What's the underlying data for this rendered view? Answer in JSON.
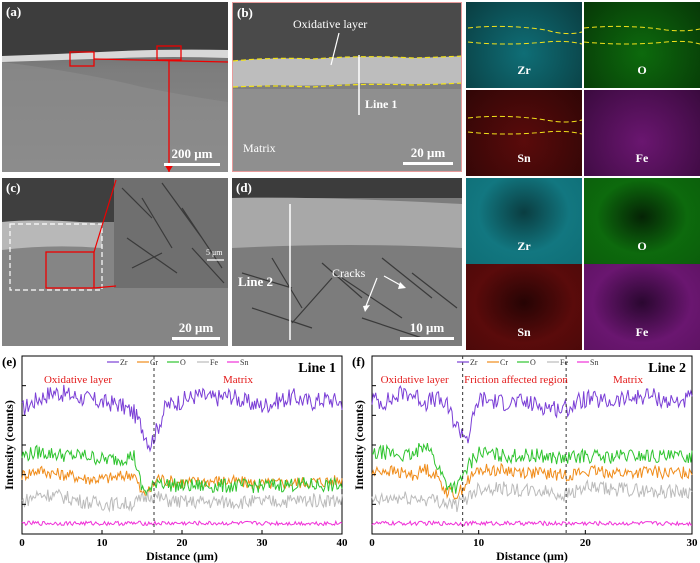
{
  "panel_a": {
    "tag": "(a)",
    "scale": "200 μm"
  },
  "panel_b": {
    "tag": "(b)",
    "oxide_label": "Oxidative layer",
    "line": "Line 1",
    "matrix": "Matrix",
    "scale": "20 μm",
    "maps": [
      {
        "element": "Zr",
        "color": "#1aa9b5"
      },
      {
        "element": "O",
        "color": "#22b322"
      },
      {
        "element": "Sn",
        "color": "#b22020"
      },
      {
        "element": "Fe",
        "color": "#b22ab8"
      }
    ]
  },
  "panel_c": {
    "tag": "(c)",
    "inset_scale": "5 μm",
    "scale": "20 μm"
  },
  "panel_d": {
    "tag": "(d)",
    "line": "Line 2",
    "cracks": "Cracks",
    "scale": "10 μm",
    "maps": [
      {
        "element": "Zr",
        "color": "#1aa9b5"
      },
      {
        "element": "O",
        "color": "#22b322"
      },
      {
        "element": "Sn",
        "color": "#b22020"
      },
      {
        "element": "Fe",
        "color": "#b22ab8"
      }
    ]
  },
  "colors": {
    "Zr": "#7b3fd6",
    "Cr": "#f08c1a",
    "O": "#2fc42f",
    "Fe": "#bbbbbb",
    "Sn": "#f030d8"
  },
  "chart_data": [
    {
      "type": "line",
      "panel": "(e)",
      "title": "Line 1",
      "xlabel": "Distance (μm)",
      "ylabel": "Intensity (counts)",
      "xlim": [
        0,
        40
      ],
      "xticks": [
        0,
        10,
        20,
        30,
        40
      ],
      "region_labels": [
        {
          "text": "Oxidative layer",
          "x": 7
        },
        {
          "text": "Matrix",
          "x": 27
        }
      ],
      "boundaries": [
        16.5
      ],
      "series": [
        {
          "name": "Zr",
          "x": [
            0,
            2,
            4,
            6,
            8,
            10,
            12,
            14,
            15,
            16,
            17,
            18,
            20,
            22,
            24,
            26,
            28,
            30,
            32,
            34,
            36,
            38,
            40
          ],
          "values": [
            0.7,
            0.76,
            0.8,
            0.78,
            0.76,
            0.74,
            0.73,
            0.68,
            0.6,
            0.5,
            0.6,
            0.72,
            0.75,
            0.78,
            0.76,
            0.78,
            0.74,
            0.72,
            0.75,
            0.77,
            0.74,
            0.76,
            0.74
          ]
        },
        {
          "name": "Cr",
          "x": [
            0,
            2,
            4,
            6,
            8,
            10,
            12,
            14,
            15,
            16,
            17,
            18,
            20,
            25,
            30,
            35,
            40
          ],
          "values": [
            0.33,
            0.36,
            0.34,
            0.33,
            0.31,
            0.31,
            0.32,
            0.34,
            0.22,
            0.24,
            0.32,
            0.3,
            0.29,
            0.3,
            0.28,
            0.29,
            0.3
          ]
        },
        {
          "name": "O",
          "x": [
            0,
            2,
            4,
            6,
            8,
            10,
            12,
            14,
            15,
            16,
            17,
            18,
            20,
            25,
            30,
            35,
            40
          ],
          "values": [
            0.44,
            0.46,
            0.45,
            0.44,
            0.44,
            0.42,
            0.42,
            0.44,
            0.25,
            0.24,
            0.31,
            0.28,
            0.27,
            0.27,
            0.27,
            0.28,
            0.27
          ]
        },
        {
          "name": "Fe",
          "x": [
            0,
            2,
            4,
            6,
            8,
            10,
            12,
            14,
            16,
            18,
            20,
            25,
            30,
            35,
            40
          ],
          "values": [
            0.18,
            0.22,
            0.22,
            0.2,
            0.18,
            0.17,
            0.17,
            0.17,
            0.22,
            0.19,
            0.18,
            0.18,
            0.18,
            0.19,
            0.19
          ]
        },
        {
          "name": "Sn",
          "x": [
            0,
            5,
            10,
            15,
            20,
            25,
            30,
            35,
            40
          ],
          "values": [
            0.06,
            0.06,
            0.06,
            0.06,
            0.06,
            0.06,
            0.06,
            0.06,
            0.06
          ]
        }
      ]
    },
    {
      "type": "line",
      "panel": "(f)",
      "title": "Line 2",
      "xlabel": "Distance (μm)",
      "ylabel": "Intensity (counts)",
      "xlim": [
        0,
        30
      ],
      "xticks": [
        0,
        10,
        20,
        30
      ],
      "region_labels": [
        {
          "text": "Oxidative layer",
          "x": 4
        },
        {
          "text": "Friction affected region",
          "x": 13.5
        },
        {
          "text": "Matrix",
          "x": 24
        }
      ],
      "boundaries": [
        8.5,
        18.2
      ],
      "series": [
        {
          "name": "Zr",
          "x": [
            0,
            1,
            2,
            3,
            4,
            5,
            6,
            7,
            8,
            9,
            10,
            12,
            14,
            16,
            18,
            20,
            22,
            24,
            26,
            28,
            30
          ],
          "values": [
            0.76,
            0.74,
            0.76,
            0.8,
            0.78,
            0.74,
            0.76,
            0.72,
            0.6,
            0.54,
            0.76,
            0.74,
            0.74,
            0.72,
            0.7,
            0.76,
            0.74,
            0.76,
            0.78,
            0.74,
            0.76
          ]
        },
        {
          "name": "Cr",
          "x": [
            0,
            1,
            2,
            3,
            4,
            5,
            6,
            7,
            8,
            9,
            10,
            12,
            14,
            16,
            18,
            20,
            22,
            24,
            26,
            28,
            30
          ],
          "values": [
            0.34,
            0.36,
            0.35,
            0.34,
            0.33,
            0.37,
            0.33,
            0.24,
            0.22,
            0.3,
            0.36,
            0.36,
            0.35,
            0.34,
            0.33,
            0.35,
            0.35,
            0.34,
            0.35,
            0.34,
            0.35
          ]
        },
        {
          "name": "O",
          "x": [
            0,
            1,
            2,
            3,
            4,
            5,
            6,
            7,
            8,
            9,
            10,
            12,
            14,
            16,
            18,
            20,
            22,
            24,
            26,
            28,
            30
          ],
          "values": [
            0.44,
            0.46,
            0.45,
            0.44,
            0.44,
            0.52,
            0.4,
            0.28,
            0.26,
            0.38,
            0.46,
            0.44,
            0.44,
            0.44,
            0.42,
            0.44,
            0.43,
            0.44,
            0.44,
            0.43,
            0.44
          ]
        },
        {
          "name": "Fe",
          "x": [
            0,
            2,
            4,
            6,
            8,
            10,
            12,
            14,
            16,
            18,
            20,
            22,
            24,
            26,
            28,
            30
          ],
          "values": [
            0.18,
            0.2,
            0.2,
            0.19,
            0.16,
            0.26,
            0.26,
            0.24,
            0.24,
            0.22,
            0.26,
            0.25,
            0.25,
            0.24,
            0.24,
            0.24
          ]
        },
        {
          "name": "Sn",
          "x": [
            0,
            5,
            10,
            15,
            20,
            25,
            30
          ],
          "values": [
            0.06,
            0.06,
            0.06,
            0.06,
            0.06,
            0.06,
            0.06
          ]
        }
      ]
    }
  ]
}
